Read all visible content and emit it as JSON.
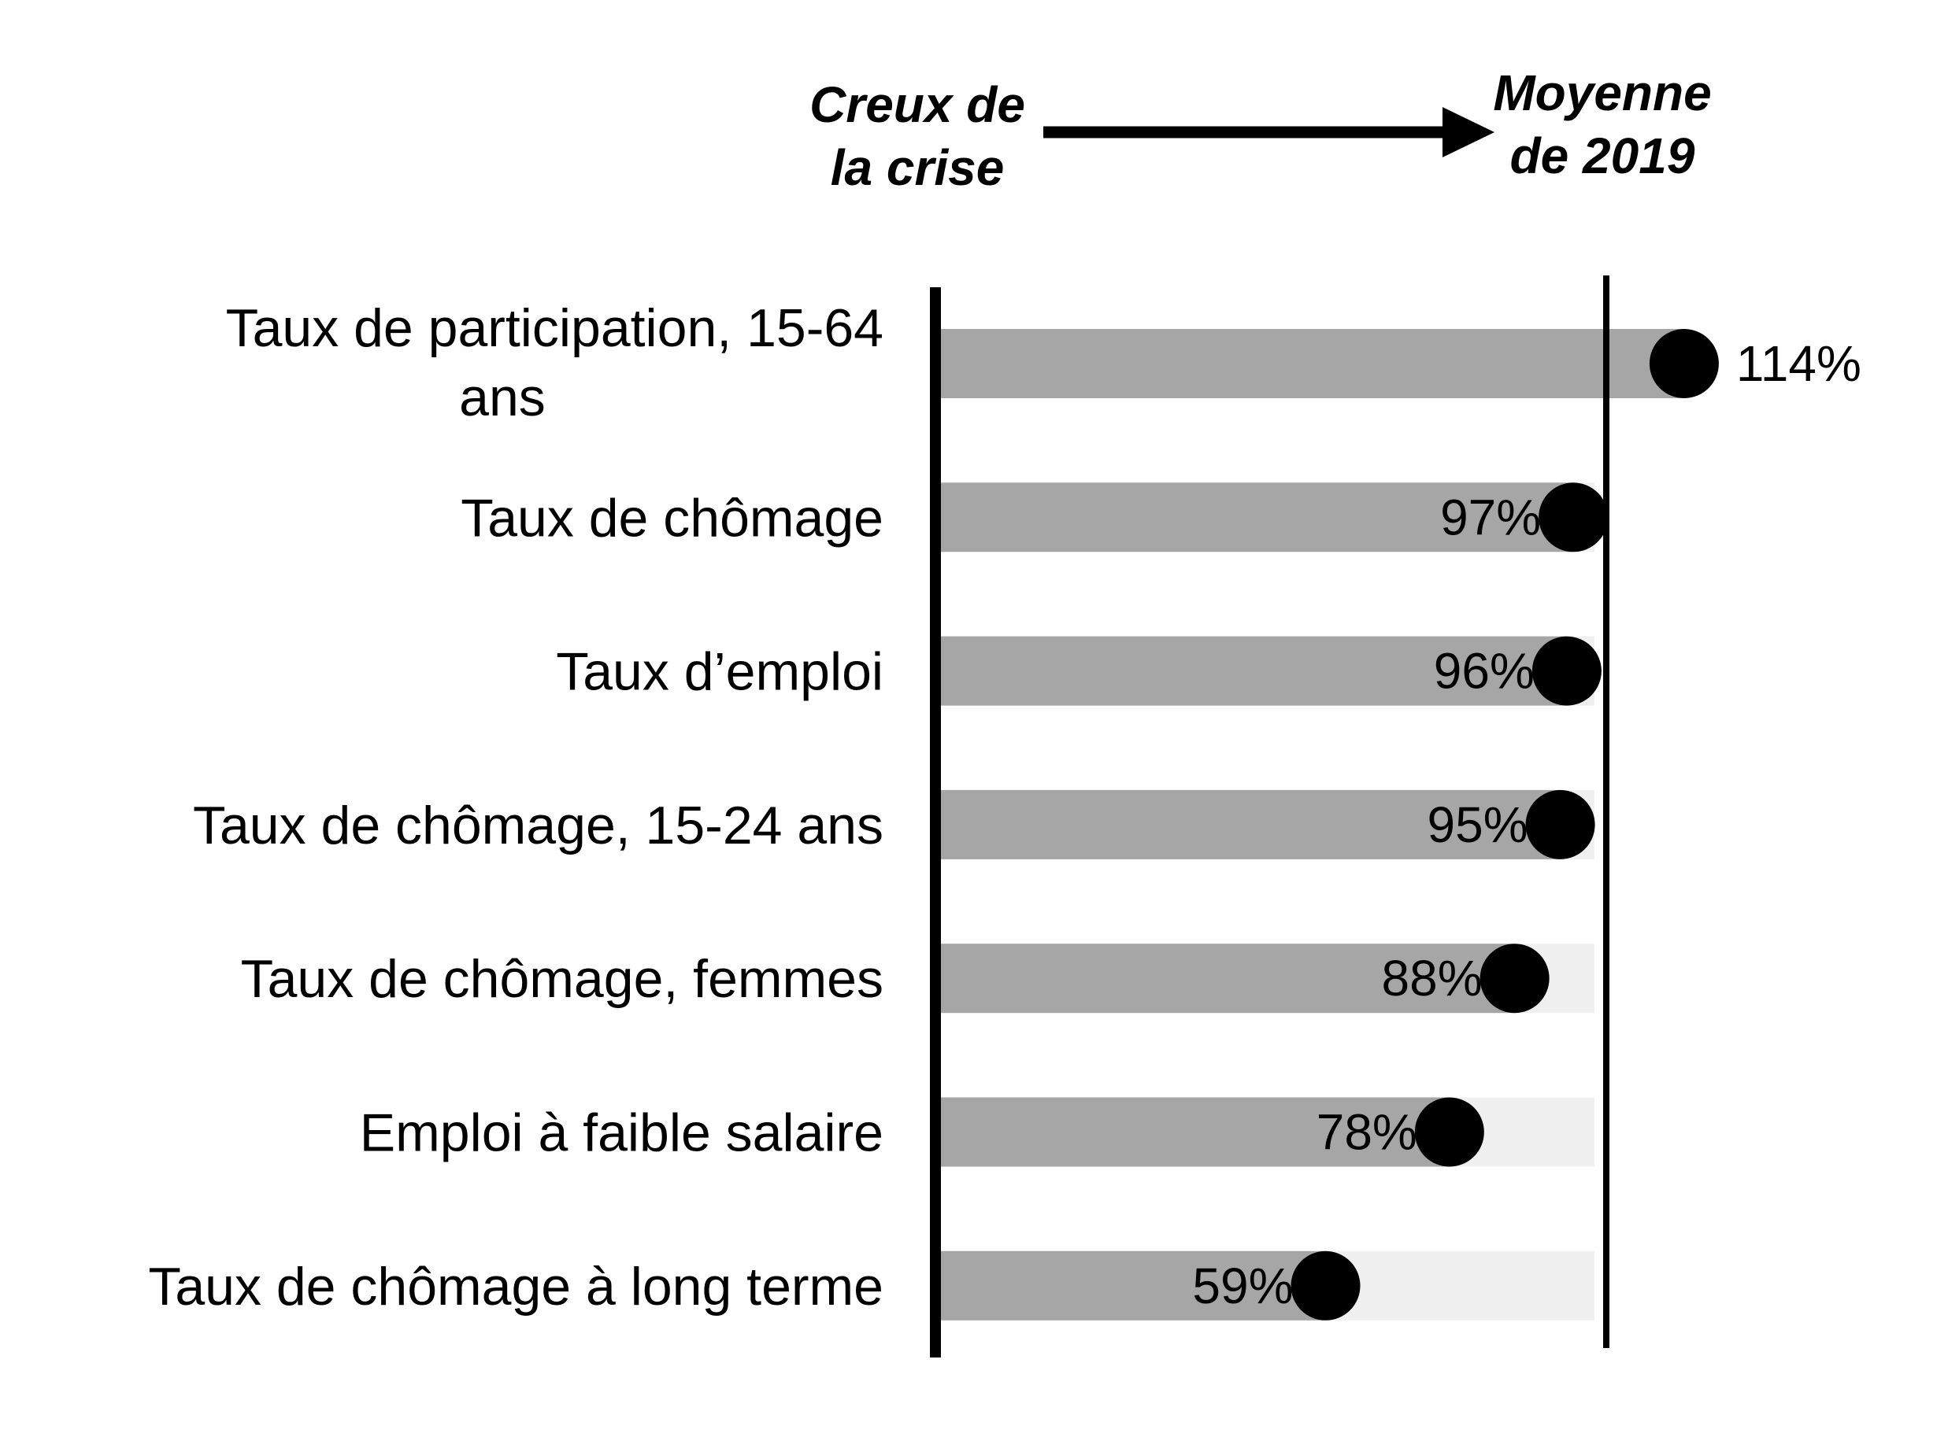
{
  "chart_data": {
    "type": "bar",
    "header": {
      "start_label": [
        "Creux de",
        "la crise"
      ],
      "end_label": [
        "Moyenne",
        "de 2019"
      ]
    },
    "categories": [
      [
        "Taux de participation, 15-64",
        "ans"
      ],
      [
        "Taux de chômage"
      ],
      [
        "Taux d’emploi"
      ],
      [
        "Taux de chômage, 15-24 ans"
      ],
      [
        "Taux de chômage, femmes"
      ],
      [
        "Emploi à faible salaire"
      ],
      [
        "Taux de chômage à long terme"
      ]
    ],
    "values": [
      114,
      97,
      96,
      95,
      88,
      78,
      59
    ],
    "value_labels": [
      "114%",
      "97%",
      "96%",
      "95%",
      "88%",
      "78%",
      "59%"
    ],
    "xlim": [
      0,
      100
    ],
    "colors": {
      "bar": "#a6a6a6",
      "track": "#f0f0f0",
      "dot": "#000000",
      "axis": "#000000"
    }
  }
}
